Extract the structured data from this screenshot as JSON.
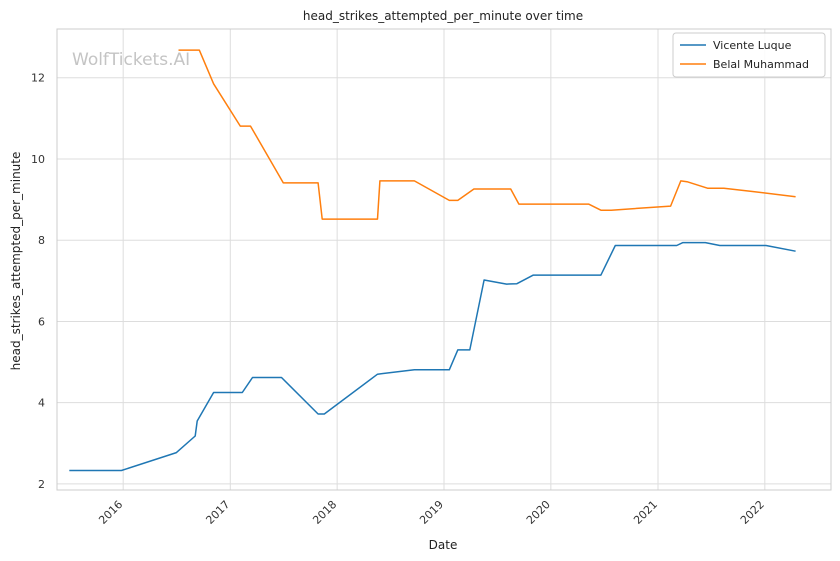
{
  "chart_data": {
    "type": "line",
    "title": "head_strikes_attempted_per_minute over time",
    "xlabel": "Date",
    "ylabel": "head_strikes_attempted_per_minute",
    "watermark": "WolfTickets.AI",
    "x_ticks": [
      "2016",
      "2017",
      "2018",
      "2019",
      "2020",
      "2021",
      "2022"
    ],
    "y_ticks": [
      2,
      4,
      6,
      8,
      10,
      12
    ],
    "xlim": [
      "2015-05-20",
      "2022-08-15"
    ],
    "ylim": [
      1.85,
      13.2
    ],
    "grid": true,
    "legend_position": "top-right",
    "series": [
      {
        "name": "Vicente Luque",
        "color": "#1f77b4",
        "points": [
          [
            "2015-07-01",
            2.33
          ],
          [
            "2015-12-26",
            2.33
          ],
          [
            "2016-07-01",
            2.77
          ],
          [
            "2016-09-03",
            3.18
          ],
          [
            "2016-09-10",
            3.55
          ],
          [
            "2016-11-05",
            4.25
          ],
          [
            "2017-02-11",
            4.25
          ],
          [
            "2017-03-18",
            4.62
          ],
          [
            "2017-06-25",
            4.62
          ],
          [
            "2017-10-28",
            3.72
          ],
          [
            "2017-11-18",
            3.72
          ],
          [
            "2018-05-19",
            4.7
          ],
          [
            "2018-09-22",
            4.81
          ],
          [
            "2019-01-19",
            4.81
          ],
          [
            "2019-02-17",
            5.3
          ],
          [
            "2019-03-30",
            5.3
          ],
          [
            "2019-05-18",
            7.02
          ],
          [
            "2019-08-03",
            6.92
          ],
          [
            "2019-09-07",
            6.93
          ],
          [
            "2019-11-02",
            7.14
          ],
          [
            "2020-06-20",
            7.14
          ],
          [
            "2020-08-08",
            7.87
          ],
          [
            "2021-03-06",
            7.87
          ],
          [
            "2021-03-27",
            7.94
          ],
          [
            "2021-06-12",
            7.94
          ],
          [
            "2021-07-31",
            7.87
          ],
          [
            "2022-01-05",
            7.87
          ],
          [
            "2022-04-16",
            7.73
          ]
        ]
      },
      {
        "name": "Belal Muhammad",
        "color": "#ff7f0e",
        "points": [
          [
            "2016-07-08",
            12.68
          ],
          [
            "2016-09-17",
            12.68
          ],
          [
            "2016-11-05",
            11.85
          ],
          [
            "2017-02-04",
            10.81
          ],
          [
            "2017-03-11",
            10.81
          ],
          [
            "2017-07-01",
            9.41
          ],
          [
            "2017-10-28",
            9.41
          ],
          [
            "2017-11-11",
            8.52
          ],
          [
            "2018-05-19",
            8.52
          ],
          [
            "2018-05-27",
            9.46
          ],
          [
            "2018-09-22",
            9.46
          ],
          [
            "2019-01-19",
            8.98
          ],
          [
            "2019-02-17",
            8.98
          ],
          [
            "2019-04-13",
            9.26
          ],
          [
            "2019-08-17",
            9.26
          ],
          [
            "2019-09-14",
            8.89
          ],
          [
            "2020-05-09",
            8.89
          ],
          [
            "2020-06-20",
            8.74
          ],
          [
            "2020-07-25",
            8.74
          ],
          [
            "2021-02-13",
            8.84
          ],
          [
            "2021-03-20",
            9.46
          ],
          [
            "2021-04-10",
            9.44
          ],
          [
            "2021-06-19",
            9.28
          ],
          [
            "2021-08-14",
            9.28
          ],
          [
            "2021-11-20",
            9.2
          ],
          [
            "2022-04-16",
            9.07
          ]
        ]
      }
    ]
  }
}
